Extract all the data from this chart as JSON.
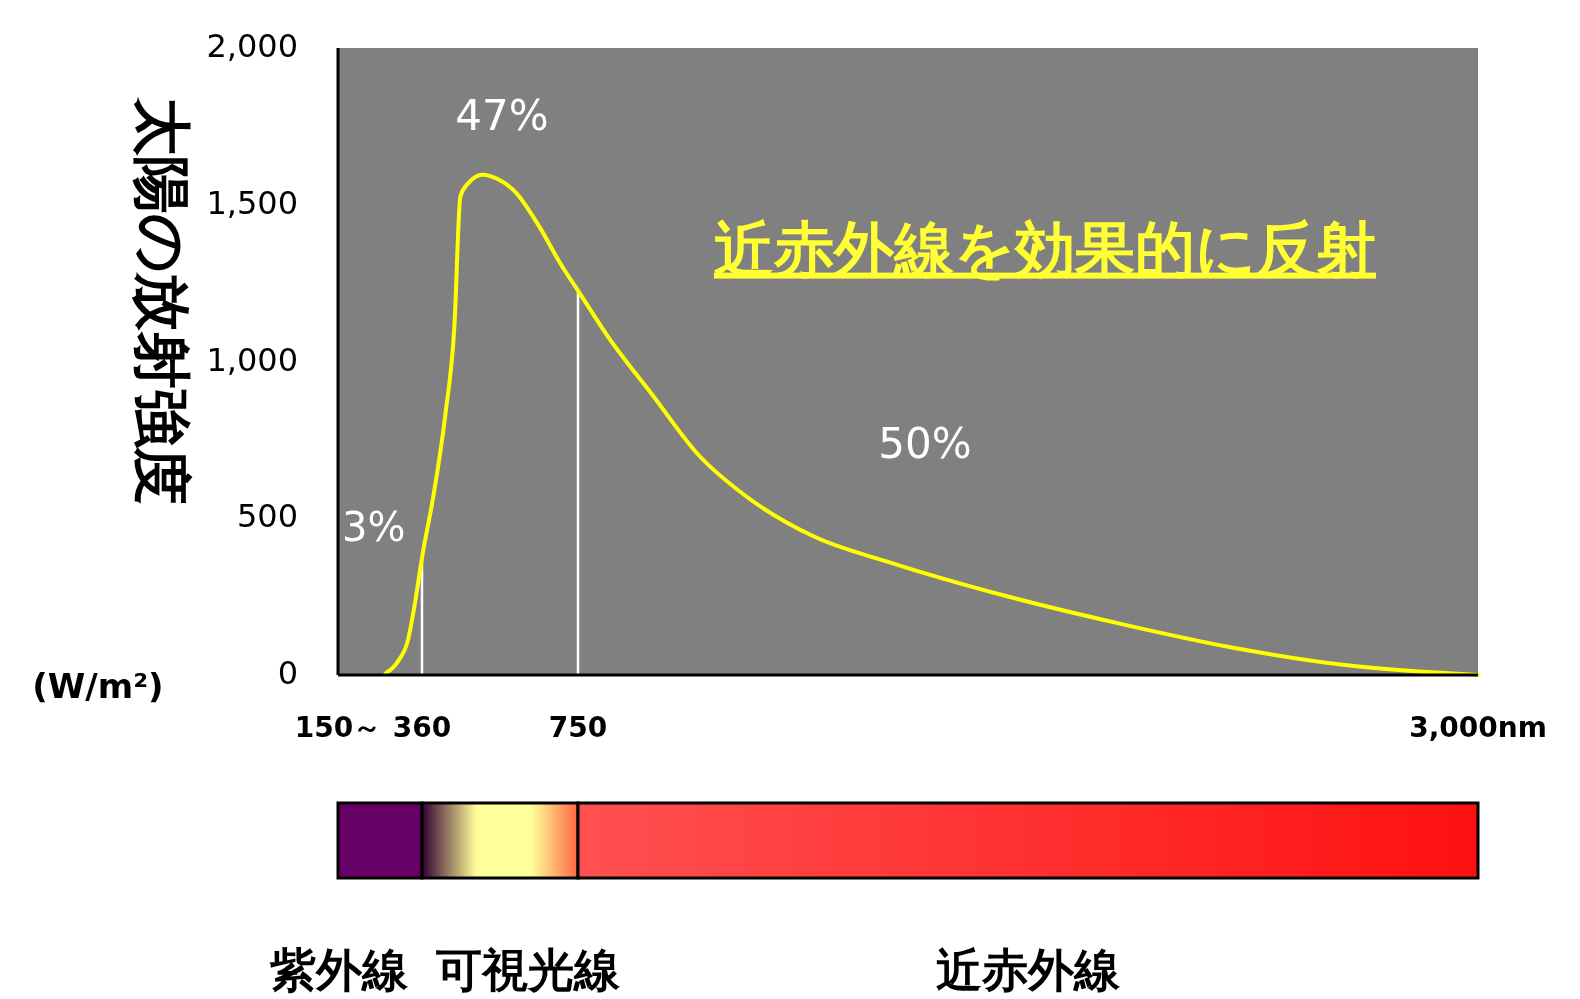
{
  "chart_data": {
    "type": "line",
    "ylabel": "太陽の放射強度",
    "x": [
      269,
      299,
      325,
      343,
      360,
      389,
      418,
      441,
      456,
      476,
      511,
      549,
      593,
      651,
      709,
      750,
      824,
      938,
      1052,
      1165,
      1336,
      1535,
      1820,
      2104,
      2388,
      2673,
      3000
    ],
    "series": [
      {
        "color": "#ffff00",
        "values": [
          5,
          42,
          112,
          234,
          374,
          575,
          827,
          1113,
          1527,
          1569,
          1596,
          1582,
          1541,
          1435,
          1306,
          1226,
          1081,
          890,
          701,
          575,
          444,
          357,
          252,
          164,
          87,
          31,
          0
        ]
      }
    ],
    "xlim": [
      150,
      3000
    ],
    "xticks": [
      {
        "value": 150,
        "label": "150～"
      },
      360,
      750,
      {
        "value": 3000,
        "label": "3,000nm"
      }
    ],
    "ylim": [
      0,
      2000
    ],
    "yticks": [
      0,
      500,
      {
        "value": 1000,
        "label": "1,000"
      },
      {
        "value": 1500,
        "label": "1,500"
      },
      {
        "value": 2000,
        "label": "2,000"
      }
    ],
    "ref_lines": [
      {
        "axis": "x",
        "value": 360,
        "color": "#ffffff"
      },
      {
        "axis": "x",
        "value": 750,
        "color": "#ffffff"
      }
    ],
    "annotations": [
      "3%",
      "47%",
      "50%",
      "近赤外線を効果的に反射",
      "(W/m²)",
      "紫外線",
      "可視光線",
      "近赤外線"
    ],
    "grid": false,
    "marker": "none",
    "line_style": "solid"
  }
}
